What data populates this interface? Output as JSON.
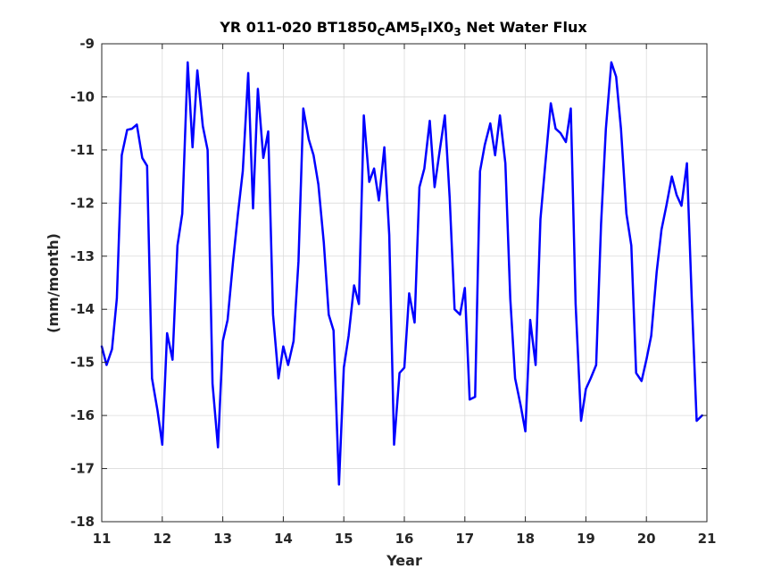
{
  "colors": {
    "series": "#0000ff",
    "axis": "#262626",
    "grid": "#dcdcdc"
  },
  "chart_data": {
    "type": "line",
    "title": {
      "parts": [
        "YR 011-020 BT1850",
        "C",
        "AM5",
        "F",
        "IX0",
        "3",
        " Net Water Flux"
      ],
      "subscripts": [
        false,
        true,
        false,
        true,
        false,
        true,
        false
      ]
    },
    "xlabel": "Year",
    "ylabel": "(mm/month)",
    "xlim": [
      11,
      21
    ],
    "ylim": [
      -18,
      -9
    ],
    "xticks": [
      11,
      12,
      13,
      14,
      15,
      16,
      17,
      18,
      19,
      20,
      21
    ],
    "yticks": [
      -18,
      -17,
      -16,
      -15,
      -14,
      -13,
      -12,
      -11,
      -10,
      -9
    ],
    "grid": true,
    "series": [
      {
        "color": "#0000ff",
        "x": [
          11.0,
          11.08,
          11.17,
          11.25,
          11.33,
          11.42,
          11.5,
          11.58,
          11.67,
          11.75,
          11.83,
          11.92,
          12.0,
          12.08,
          12.17,
          12.25,
          12.33,
          12.42,
          12.5,
          12.58,
          12.67,
          12.75,
          12.83,
          12.92,
          13.0,
          13.08,
          13.17,
          13.25,
          13.33,
          13.42,
          13.5,
          13.58,
          13.67,
          13.75,
          13.83,
          13.92,
          14.0,
          14.08,
          14.17,
          14.25,
          14.33,
          14.42,
          14.5,
          14.58,
          14.67,
          14.75,
          14.83,
          14.92,
          15.0,
          15.08,
          15.17,
          15.25,
          15.33,
          15.42,
          15.5,
          15.58,
          15.67,
          15.75,
          15.83,
          15.92,
          16.0,
          16.08,
          16.17,
          16.25,
          16.33,
          16.42,
          16.5,
          16.58,
          16.67,
          16.75,
          16.83,
          16.92,
          17.0,
          17.08,
          17.17,
          17.25,
          17.33,
          17.42,
          17.5,
          17.58,
          17.67,
          17.75,
          17.83,
          17.92,
          18.0,
          18.08,
          18.17,
          18.25,
          18.33,
          18.42,
          18.5,
          18.58,
          18.67,
          18.75,
          18.83,
          18.92,
          19.0,
          19.08,
          19.17,
          19.25,
          19.33,
          19.42,
          19.5,
          19.58,
          19.67,
          19.75,
          19.83,
          19.92,
          20.0,
          20.08,
          20.17,
          20.25,
          20.33,
          20.42,
          20.5,
          20.58,
          20.67,
          20.75,
          20.83,
          20.92
        ],
        "values": [
          -14.7,
          -15.05,
          -14.75,
          -13.8,
          -11.1,
          -10.62,
          -10.6,
          -10.52,
          -11.15,
          -11.3,
          -15.3,
          -15.9,
          -16.55,
          -14.45,
          -14.95,
          -12.8,
          -12.2,
          -9.35,
          -10.95,
          -9.5,
          -10.55,
          -11.0,
          -15.4,
          -16.6,
          -14.6,
          -14.2,
          -13.1,
          -12.2,
          -11.4,
          -9.55,
          -12.1,
          -9.85,
          -11.15,
          -10.65,
          -14.1,
          -15.3,
          -14.7,
          -15.05,
          -14.6,
          -13.1,
          -10.22,
          -10.8,
          -11.1,
          -11.65,
          -12.75,
          -14.1,
          -14.4,
          -17.3,
          -15.1,
          -14.5,
          -13.55,
          -13.9,
          -10.35,
          -11.6,
          -11.35,
          -11.95,
          -10.95,
          -12.6,
          -16.55,
          -15.2,
          -15.1,
          -13.7,
          -14.25,
          -11.7,
          -11.35,
          -10.45,
          -11.7,
          -11.05,
          -10.35,
          -11.9,
          -14.0,
          -14.1,
          -13.6,
          -15.7,
          -15.65,
          -11.4,
          -10.9,
          -10.5,
          -11.1,
          -10.35,
          -11.25,
          -13.8,
          -15.3,
          -15.8,
          -16.3,
          -14.2,
          -15.05,
          -12.3,
          -11.25,
          -10.12,
          -10.6,
          -10.68,
          -10.85,
          -10.22,
          -13.9,
          -16.1,
          -15.5,
          -15.3,
          -15.05,
          -12.4,
          -10.6,
          -9.35,
          -9.62,
          -10.6,
          -12.2,
          -12.8,
          -15.2,
          -15.35,
          -14.95,
          -14.5,
          -13.3,
          -12.5,
          -12.05,
          -11.5,
          -11.85,
          -12.05,
          -11.25,
          -13.8,
          -16.1,
          -16.0
        ]
      }
    ]
  }
}
